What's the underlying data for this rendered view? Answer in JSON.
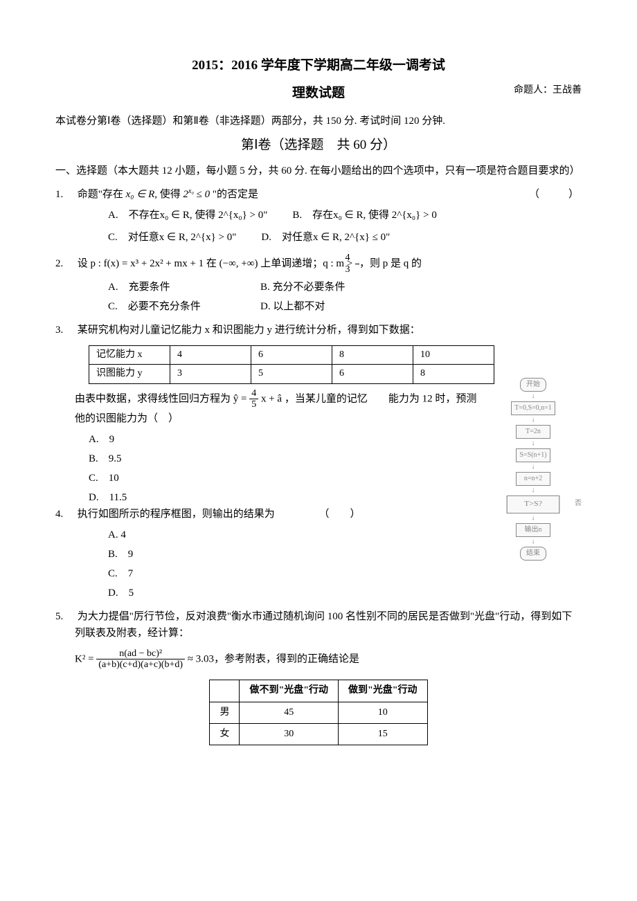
{
  "header": {
    "main_title": "2015：2016 学年度下学期高二年级一调考试",
    "sub_title": "理数试题",
    "author": "命题人：王战善",
    "intro": "本试卷分第Ⅰ卷（选择题）和第Ⅱ卷（非选择题）两部分，共 150 分. 考试时间 120 分钟.",
    "section1_title": "第Ⅰ卷（选择题　共 60 分）",
    "section1_instr": "一、选择题（本大题共 12 小题，每小题 5 分，共 60 分. 在每小题给出的四个选项中，只有一项是符合题目要求的）"
  },
  "bracket": "（　　）",
  "q1": {
    "num": "1.",
    "text_pre": "命题\"存在",
    "text_mid": "使得",
    "text_post": "\"的否定是",
    "optA": "A.　不存在x₀ ∈ R, 使得 2^{x₀} > 0\"",
    "optB": "B.　存在x₀ ∈ R, 使得 2^{x₀} > 0",
    "optC": "C.　对任意x ∈ R, 2^{x} > 0\"",
    "optD": "D.　对任意x ∈ R, 2^{x} ≤ 0\""
  },
  "q2": {
    "num": "2.",
    "text": "设 p : f(x) = x³ + 2x² + mx + 1 在 (−∞, +∞) 上单调递增；q : m > ",
    "frac_num": "4",
    "frac_den": "3",
    "text2": "，则 p 是 q 的",
    "optA": "A.　充要条件",
    "optB": "B. 充分不必要条件",
    "optC": "C.　必要不充分条件",
    "optD": "D. 以上都不对"
  },
  "q3": {
    "num": "3.",
    "text": "某研究机构对儿童记忆能力 x 和识图能力 y 进行统计分析，得到如下数据：",
    "table": {
      "r1": [
        "记忆能力 x",
        "4",
        "6",
        "8",
        "10"
      ],
      "r2": [
        "识图能力 y",
        "3",
        "5",
        "6",
        "8"
      ],
      "col_widths": [
        "96px",
        "96px",
        "96px",
        "96px",
        "96px"
      ]
    },
    "text2a": "由表中数据，求得线性回归方程为 ŷ = ",
    "frac_num": "4",
    "frac_den": "5",
    "text2b": " x + â ，当某儿童的记忆　　能力为 12 时，预测他的识图能力为（　）",
    "optA": "A.　9",
    "optB": "B.　9.5",
    "optC": "C.　10",
    "optD": "D.　11.5"
  },
  "q4": {
    "num": "4.",
    "text": "执行如图所示的程序框图，则输出的结果为",
    "optA": "A. 4",
    "optB": "B.　9",
    "optC": "C.　7",
    "optD": "D.　5"
  },
  "q5": {
    "num": "5.",
    "text": "为大力提倡\"厉行节俭，反对浪费\"衡水市通过随机询问 100 名性别不同的居民是否做到\"光盘\"行动，得到如下列联表及附表，经计算：",
    "formula_lhs": "K² = ",
    "formula_num": "n(ad − bc)²",
    "formula_den": "(a+b)(c+d)(a+c)(b+d)",
    "formula_rhs": " ≈ 3.03，参考附表，得到的正确结论是",
    "table": {
      "h0": "",
      "h1": "做不到\"光盘\"行动",
      "h2": "做到\"光盘\"行动",
      "r1": [
        "男",
        "45",
        "10"
      ],
      "r2": [
        "女",
        "30",
        "15"
      ]
    }
  },
  "flowchart": {
    "b1": "开始",
    "b2": "T=0,S=0,n=1",
    "b3": "T=2n",
    "b4": "S=S(n+1)",
    "b5": "n=n+2",
    "b6": "T>S?",
    "side": "否",
    "b7": "输出n",
    "b8": "结束"
  }
}
